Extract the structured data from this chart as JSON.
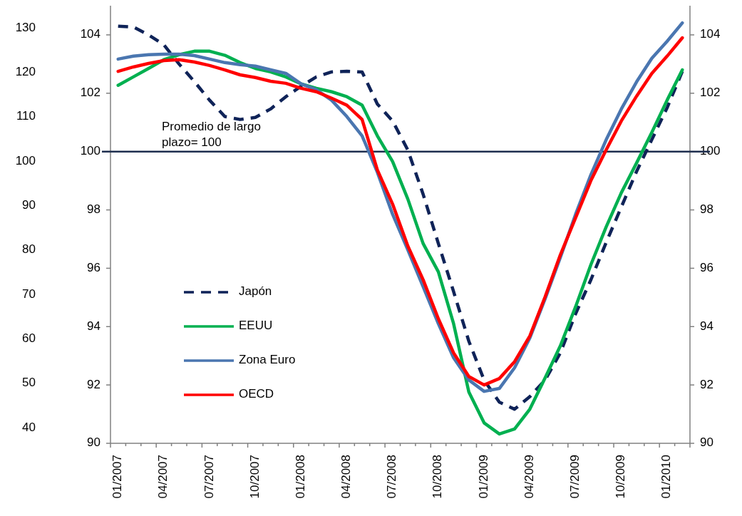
{
  "chart_data": {
    "type": "line",
    "categories": [
      "01/2007",
      null,
      null,
      "04/2007",
      null,
      null,
      "07/2007",
      null,
      null,
      "10/2007",
      null,
      null,
      "01/2008",
      null,
      null,
      "04/2008",
      null,
      null,
      "07/2008",
      null,
      null,
      "10/2008",
      null,
      null,
      "01/2009",
      null,
      null,
      "04/2009",
      null,
      null,
      "07/2009",
      null,
      null,
      "10/2009",
      null,
      null,
      "01/2010",
      null
    ],
    "ylim": [
      90,
      105
    ],
    "yticks": [
      90,
      92,
      94,
      96,
      98,
      100,
      102,
      104
    ],
    "y2lim": [
      90,
      105
    ],
    "y2ticks": [
      90,
      92,
      94,
      96,
      98,
      100,
      102,
      104
    ],
    "y3lim": [
      36.5,
      135
    ],
    "y3ticks": [
      40,
      50,
      60,
      70,
      80,
      90,
      100,
      110,
      120,
      130
    ],
    "legend": "left",
    "ref_lines": [
      {
        "axis": "y",
        "value": 100,
        "label": "Promedio de largo plazo= 100",
        "color": "#1f2f4f"
      }
    ],
    "series": [
      {
        "name": "Japón",
        "color": "#0f2358",
        "line_style": "dashed",
        "values": [
          104.3,
          104.27,
          104.0,
          103.66,
          103.0,
          102.4,
          101.76,
          101.2,
          101.1,
          101.17,
          101.46,
          101.88,
          102.24,
          102.56,
          102.73,
          102.75,
          102.73,
          101.63,
          101.05,
          100.05,
          98.54,
          96.85,
          95.2,
          93.5,
          92.17,
          91.41,
          91.17,
          91.6,
          92.17,
          93.1,
          94.44,
          95.6,
          96.88,
          98.1,
          99.32,
          100.41,
          101.5,
          102.75
        ]
      },
      {
        "name": "EEUU",
        "color": "#00b050",
        "values": [
          102.27,
          102.56,
          102.85,
          103.15,
          103.32,
          103.44,
          103.44,
          103.3,
          103.05,
          102.85,
          102.73,
          102.56,
          102.32,
          102.17,
          102.05,
          101.88,
          101.59,
          100.54,
          99.66,
          98.37,
          96.85,
          95.88,
          94.1,
          91.76,
          90.7,
          90.32,
          90.49,
          91.17,
          92.24,
          93.34,
          94.68,
          96.12,
          97.41,
          98.59,
          99.61,
          100.66,
          101.76,
          102.8
        ]
      },
      {
        "name": "Zona Euro",
        "color": "#4a76b0",
        "values": [
          103.17,
          103.27,
          103.32,
          103.34,
          103.34,
          103.29,
          103.17,
          103.05,
          102.98,
          102.93,
          102.8,
          102.68,
          102.32,
          102.12,
          101.76,
          101.2,
          100.54,
          99.29,
          97.85,
          96.63,
          95.37,
          94.1,
          92.93,
          92.17,
          91.78,
          91.88,
          92.59,
          93.61,
          94.95,
          96.37,
          97.85,
          99.2,
          100.4,
          101.46,
          102.39,
          103.2,
          103.78,
          104.41
        ]
      },
      {
        "name": "OECD",
        "color": "#ff0000",
        "values": [
          102.75,
          102.9,
          103.02,
          103.12,
          103.15,
          103.07,
          102.95,
          102.8,
          102.63,
          102.54,
          102.41,
          102.34,
          102.17,
          102.05,
          101.83,
          101.59,
          101.1,
          99.37,
          98.2,
          96.76,
          95.61,
          94.27,
          93.1,
          92.29,
          92.0,
          92.22,
          92.8,
          93.68,
          95.02,
          96.46,
          97.73,
          99.0,
          100.05,
          101.05,
          101.9,
          102.68,
          103.27,
          103.9
        ]
      }
    ]
  }
}
